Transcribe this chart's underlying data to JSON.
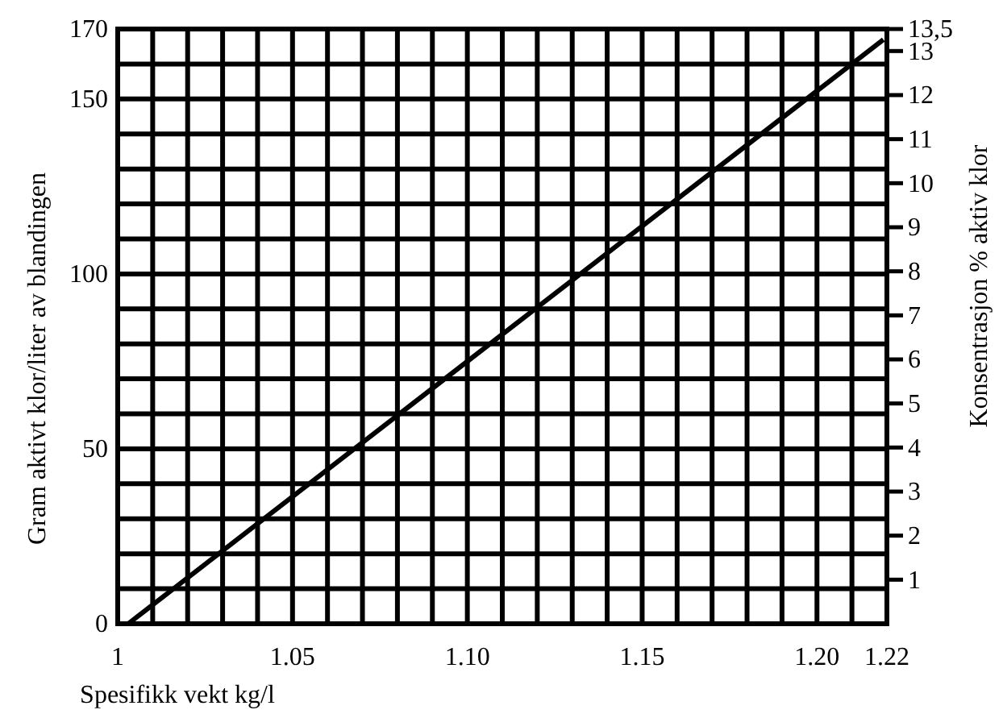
{
  "chart_data": {
    "type": "line",
    "xlabel": "Spesifikk vekt kg/l",
    "ylabel": "Gram aktivt klor/liter av blandingen",
    "y2label": "Konsentrasjon % aktiv klor",
    "x": [
      1.003,
      1.219
    ],
    "series": [
      {
        "color": "#000000",
        "values": [
          0,
          167
        ]
      }
    ],
    "xlim": [
      1,
      1.22
    ],
    "xticks": [
      1,
      {
        "value": 1.01,
        "label": null
      },
      {
        "value": 1.02,
        "label": null
      },
      {
        "value": 1.03,
        "label": null
      },
      {
        "value": 1.04,
        "label": null
      },
      1.05,
      {
        "value": 1.06,
        "label": null
      },
      {
        "value": 1.07,
        "label": null
      },
      {
        "value": 1.08,
        "label": null
      },
      {
        "value": 1.09,
        "label": null
      },
      {
        "value": 1.1,
        "label": "1.10"
      },
      {
        "value": 1.11,
        "label": null
      },
      {
        "value": 1.12,
        "label": null
      },
      {
        "value": 1.13,
        "label": null
      },
      {
        "value": 1.14,
        "label": null
      },
      1.15,
      {
        "value": 1.16,
        "label": null
      },
      {
        "value": 1.17,
        "label": null
      },
      {
        "value": 1.18,
        "label": null
      },
      {
        "value": 1.19,
        "label": null
      },
      {
        "value": 1.2,
        "label": "1.20"
      },
      {
        "value": 1.21,
        "label": null
      },
      1.22
    ],
    "ylim": [
      0,
      170
    ],
    "yticks": [
      0,
      {
        "value": 10,
        "label": null
      },
      {
        "value": 20,
        "label": null
      },
      {
        "value": 30,
        "label": null
      },
      {
        "value": 40,
        "label": null
      },
      50,
      {
        "value": 60,
        "label": null
      },
      {
        "value": 70,
        "label": null
      },
      {
        "value": 80,
        "label": null
      },
      {
        "value": 90,
        "label": null
      },
      100,
      {
        "value": 110,
        "label": null
      },
      {
        "value": 120,
        "label": null
      },
      {
        "value": 130,
        "label": null
      },
      {
        "value": 140,
        "label": null
      },
      150,
      {
        "value": 160,
        "label": null
      },
      170
    ],
    "y2lim": [
      0,
      13.5
    ],
    "y2ticks": [
      1,
      2,
      3,
      4,
      5,
      6,
      7,
      8,
      9,
      10,
      11,
      12,
      13,
      {
        "value": 13.5,
        "label": "13,5"
      }
    ],
    "grid": true,
    "line_style": "solid",
    "marker": "none"
  }
}
